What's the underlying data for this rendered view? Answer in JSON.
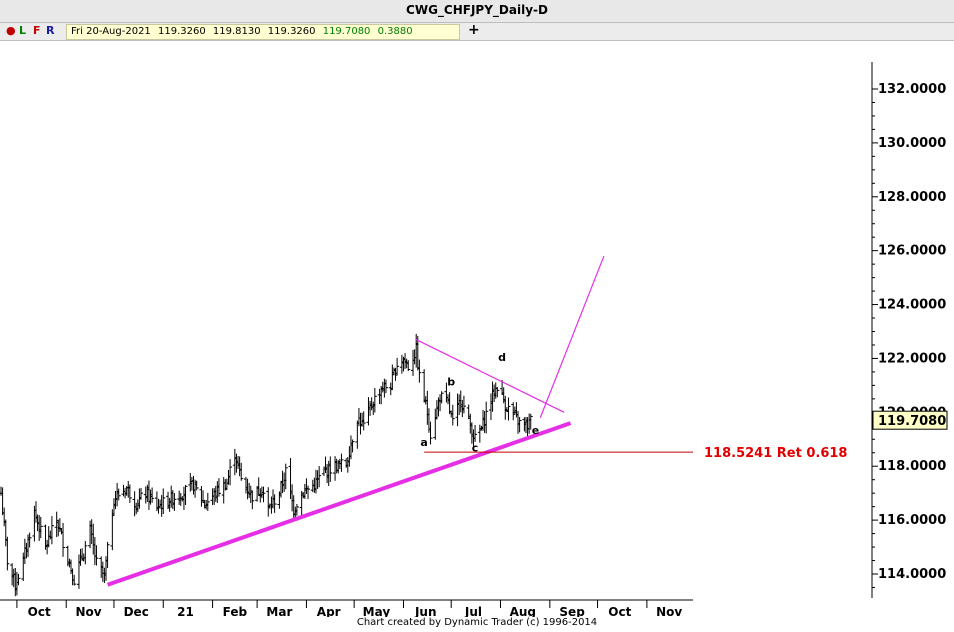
{
  "window": {
    "title": "CWG_CHFJPY_Daily-D"
  },
  "toolbar": {
    "dot": "●",
    "l_label": "L",
    "f_label": "F",
    "r_label": "R",
    "plus": "+",
    "readout": {
      "date": "Fri 20-Aug-2021",
      "open": "119.3260",
      "high": "119.8130",
      "low": "119.3260",
      "close": "119.7080",
      "change": "0.3880"
    }
  },
  "footer": {
    "credit": "Chart created by Dynamic Trader  (c) 1996-2014"
  },
  "chart_data": {
    "type": "ohlc",
    "title": "CWG_CHFJPY_Daily-D",
    "x_tick_labels": [
      "Oct",
      "Nov",
      "Dec",
      "21",
      "Feb",
      "Mar",
      "Apr",
      "May",
      "Jun",
      "Jul",
      "Aug",
      "Sep",
      "Oct",
      "Nov"
    ],
    "y_tick_labels": [
      "132.0000",
      "130.0000",
      "128.0000",
      "126.0000",
      "124.0000",
      "122.0000",
      "120.0000",
      "118.0000",
      "116.0000",
      "114.0000"
    ],
    "ylim": [
      113.0,
      133.0
    ],
    "last_price_label": "119.7080",
    "last_price": 119.708,
    "anchors": [
      [
        "2020-09-21",
        117.0
      ],
      [
        "2020-09-25",
        114.5
      ],
      [
        "2020-09-30",
        113.6
      ],
      [
        "2020-10-05",
        114.5
      ],
      [
        "2020-10-12",
        116.3
      ],
      [
        "2020-10-19",
        115.0
      ],
      [
        "2020-10-26",
        116.0
      ],
      [
        "2020-11-02",
        114.6
      ],
      [
        "2020-11-06",
        113.8
      ],
      [
        "2020-11-12",
        114.8
      ],
      [
        "2020-11-16",
        115.6
      ],
      [
        "2020-11-20",
        114.4
      ],
      [
        "2020-11-25",
        113.9
      ],
      [
        "2020-12-01",
        116.8
      ],
      [
        "2020-12-09",
        117.2
      ],
      [
        "2020-12-15",
        116.6
      ],
      [
        "2020-12-21",
        117.0
      ],
      [
        "2020-12-28",
        116.5
      ],
      [
        "2021-01-06",
        116.8
      ],
      [
        "2021-01-13",
        117.0
      ],
      [
        "2021-01-20",
        117.3
      ],
      [
        "2021-01-27",
        116.6
      ],
      [
        "2021-02-03",
        117.0
      ],
      [
        "2021-02-10",
        117.4
      ],
      [
        "2021-02-15",
        118.5
      ],
      [
        "2021-02-19",
        117.5
      ],
      [
        "2021-02-26",
        116.9
      ],
      [
        "2021-03-04",
        117.2
      ],
      [
        "2021-03-08",
        116.4
      ],
      [
        "2021-03-15",
        117.0
      ],
      [
        "2021-03-19",
        117.8
      ],
      [
        "2021-03-24",
        116.4
      ],
      [
        "2021-03-29",
        117.0
      ],
      [
        "2021-04-06",
        117.3
      ],
      [
        "2021-04-12",
        117.8
      ],
      [
        "2021-04-19",
        118.0
      ],
      [
        "2021-04-26",
        118.1
      ],
      [
        "2021-05-03",
        119.8
      ],
      [
        "2021-05-07",
        119.5
      ],
      [
        "2021-05-12",
        120.3
      ],
      [
        "2021-05-18",
        120.9
      ],
      [
        "2021-05-24",
        121.0
      ],
      [
        "2021-05-28",
        121.8
      ],
      [
        "2021-06-01",
        122.0
      ],
      [
        "2021-06-04",
        121.7
      ],
      [
        "2021-06-09",
        122.3
      ],
      [
        "2021-06-11",
        121.3
      ],
      [
        "2021-06-16",
        120.0
      ],
      [
        "2021-06-18",
        119.2
      ],
      [
        "2021-06-24",
        120.6
      ],
      [
        "2021-06-29",
        120.3
      ],
      [
        "2021-07-02",
        119.6
      ],
      [
        "2021-07-07",
        120.5
      ],
      [
        "2021-07-13",
        119.5
      ],
      [
        "2021-07-16",
        119.0
      ],
      [
        "2021-07-20",
        119.4
      ],
      [
        "2021-07-26",
        120.5
      ],
      [
        "2021-07-30",
        121.0
      ],
      [
        "2021-08-04",
        120.3
      ],
      [
        "2021-08-09",
        119.9
      ],
      [
        "2021-08-13",
        119.6
      ],
      [
        "2021-08-18",
        119.5
      ],
      [
        "2021-08-20",
        119.7
      ]
    ],
    "annotations": {
      "trendline_lower": [
        [
          "2020-11-27",
          113.6
        ],
        [
          "2021-09-14",
          119.6
        ]
      ],
      "trendline_upper": [
        [
          "2021-06-09",
          122.7
        ],
        [
          "2021-09-10",
          120.0
        ]
      ],
      "projection": [
        [
          "2021-08-26",
          119.8
        ],
        [
          "2021-10-05",
          125.8
        ]
      ],
      "retracement": {
        "label": "118.5241 Ret 0.618",
        "value": 118.5241,
        "start": "2021-06-14",
        "end": "2021-11-30"
      },
      "wave_labels": [
        {
          "text": "a",
          "date": "2021-06-14",
          "price": 118.75
        },
        {
          "text": "b",
          "date": "2021-07-01",
          "price": 121.0
        },
        {
          "text": "c",
          "date": "2021-07-16",
          "price": 118.55
        },
        {
          "text": "d",
          "date": "2021-08-02",
          "price": 121.9
        },
        {
          "text": "e",
          "date": "2021-08-23",
          "price": 119.2
        }
      ]
    },
    "colors": {
      "bars": "#000000",
      "trendline": "#e62ee6",
      "thin_line": "#e62ee6",
      "ret_line": "#c00000",
      "ret_text": "#e00000",
      "price_box": "#ffffc8"
    }
  }
}
